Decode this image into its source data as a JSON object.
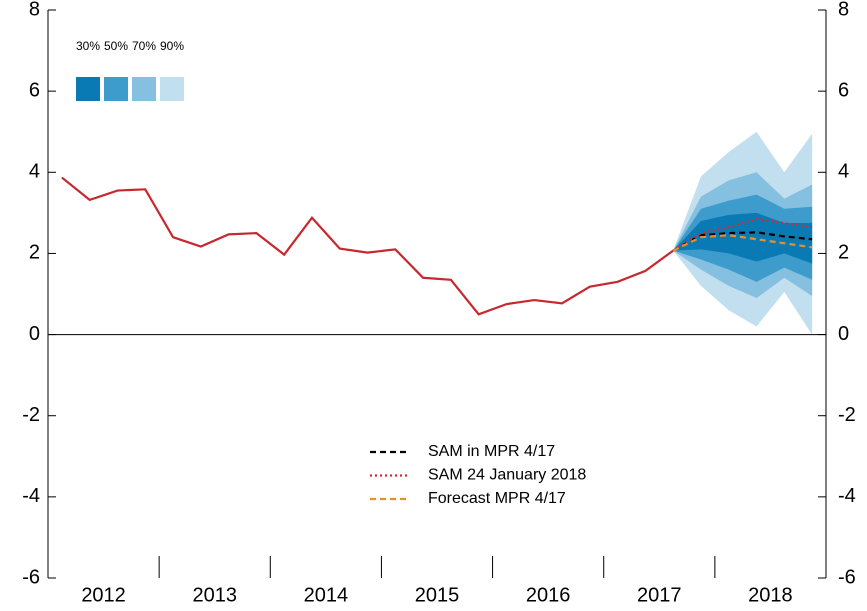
{
  "chart_data": {
    "type": "line",
    "xlim": [
      2012,
      2019
    ],
    "xticks": [
      {
        "value": 2012.5,
        "label": "2012"
      },
      {
        "value": 2013.5,
        "label": "2013"
      },
      {
        "value": 2014.5,
        "label": "2014"
      },
      {
        "value": 2015.5,
        "label": "2015"
      },
      {
        "value": 2016.5,
        "label": "2016"
      },
      {
        "value": 2017.5,
        "label": "2017"
      },
      {
        "value": 2018.5,
        "label": "2018"
      }
    ],
    "xminorticks": [
      2012,
      2013,
      2014,
      2015,
      2016,
      2017,
      2018,
      2019
    ],
    "ylim": [
      -6,
      8
    ],
    "yticks": [
      -6,
      -4,
      -2,
      0,
      2,
      4,
      6,
      8
    ],
    "series": [
      {
        "name": null,
        "color": "#c8282d",
        "style": "solid",
        "x": [
          2012.125,
          2012.375,
          2012.625,
          2012.875,
          2013.125,
          2013.375,
          2013.625,
          2013.875,
          2014.125,
          2014.375,
          2014.625,
          2014.875,
          2015.125,
          2015.375,
          2015.625,
          2015.875,
          2016.125,
          2016.375,
          2016.625,
          2016.875,
          2017.125,
          2017.375,
          2017.625
        ],
        "values": [
          3.87,
          3.32,
          3.55,
          3.58,
          2.4,
          2.17,
          2.47,
          2.5,
          1.97,
          2.88,
          2.12,
          2.02,
          2.1,
          1.4,
          1.35,
          0.5,
          0.75,
          0.85,
          0.77,
          1.18,
          1.3,
          1.57,
          2.07
        ]
      },
      {
        "name": "SAM in MPR 4/17",
        "color": "#000000",
        "style": "dashed",
        "x": [
          2017.625,
          2017.875,
          2018.125,
          2018.375,
          2018.625,
          2018.875
        ],
        "values": [
          2.07,
          2.45,
          2.5,
          2.52,
          2.42,
          2.35
        ]
      },
      {
        "name": "SAM 24 January 2018",
        "color": "#e0262b",
        "style": "dotted",
        "x": [
          2017.625,
          2017.875,
          2018.125,
          2018.375,
          2018.625,
          2018.875
        ],
        "values": [
          2.07,
          2.5,
          2.65,
          2.85,
          2.75,
          2.65
        ]
      },
      {
        "name": "Forecast MPR 4/17",
        "color": "#e5902a",
        "style": "dashed",
        "x": [
          2017.625,
          2017.875,
          2018.125,
          2018.375,
          2018.625,
          2018.875
        ],
        "values": [
          2.07,
          2.4,
          2.45,
          2.35,
          2.25,
          2.15
        ]
      }
    ],
    "fan_x": [
      2017.625,
      2017.875,
      2018.125,
      2018.375,
      2018.625,
      2018.875
    ],
    "fan": [
      {
        "name": "30%",
        "color": "#0a7ab4",
        "lower": [
          2.07,
          2.1,
          2.0,
          1.8,
          2.0,
          1.75
        ],
        "upper": [
          2.07,
          2.8,
          2.95,
          3.0,
          2.75,
          2.75
        ]
      },
      {
        "name": "50%",
        "color": "#3d9ccc",
        "lower": [
          2.07,
          1.85,
          1.6,
          1.3,
          1.65,
          1.35
        ],
        "upper": [
          2.07,
          3.1,
          3.3,
          3.45,
          3.1,
          3.15
        ]
      },
      {
        "name": "70%",
        "color": "#86c0e0",
        "lower": [
          2.07,
          1.6,
          1.2,
          0.9,
          1.4,
          0.95
        ],
        "upper": [
          2.07,
          3.4,
          3.8,
          4.0,
          3.35,
          3.7
        ]
      },
      {
        "name": "90%",
        "color": "#c1dfef",
        "lower": [
          2.07,
          1.2,
          0.6,
          0.2,
          1.05,
          0.0
        ],
        "upper": [
          2.07,
          3.9,
          4.5,
          5.0,
          4.0,
          4.95
        ]
      }
    ]
  }
}
